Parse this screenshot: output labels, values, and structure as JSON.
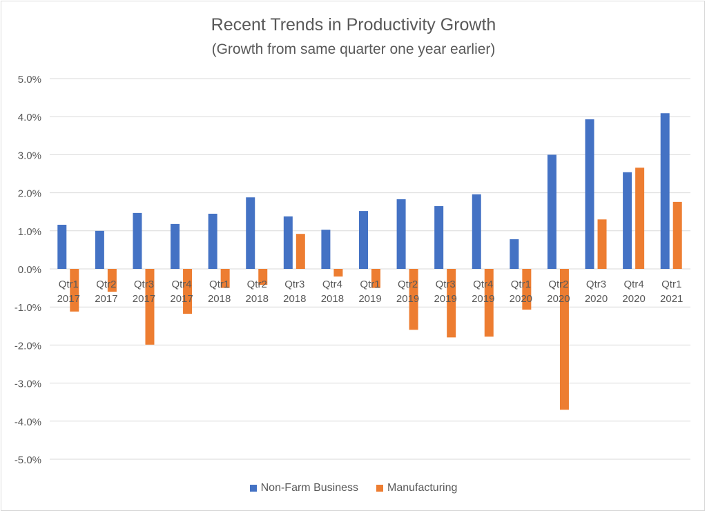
{
  "chart_data": {
    "type": "bar",
    "title": "Recent Trends in Productivity Growth",
    "subtitle": "(Growth from same quarter one year earlier)",
    "xlabel": "",
    "ylabel": "",
    "ylim": [
      -5.0,
      5.0
    ],
    "yticks": [
      "5.0%",
      "4.0%",
      "3.0%",
      "2.0%",
      "1.0%",
      "0.0%",
      "-1.0%",
      "-2.0%",
      "-3.0%",
      "-4.0%",
      "-5.0%"
    ],
    "grid": true,
    "legend": "bottom",
    "categories": [
      [
        "Qtr1",
        "2017"
      ],
      [
        "Qtr2",
        "2017"
      ],
      [
        "Qtr3",
        "2017"
      ],
      [
        "Qtr4",
        "2017"
      ],
      [
        "Qtr1",
        "2018"
      ],
      [
        "Qtr2",
        "2018"
      ],
      [
        "Qtr3",
        "2018"
      ],
      [
        "Qtr4",
        "2018"
      ],
      [
        "Qtr1",
        "2019"
      ],
      [
        "Qtr2",
        "2019"
      ],
      [
        "Qtr3",
        "2019"
      ],
      [
        "Qtr4",
        "2019"
      ],
      [
        "Qtr1",
        "2020"
      ],
      [
        "Qtr2",
        "2020"
      ],
      [
        "Qtr3",
        "2020"
      ],
      [
        "Qtr4",
        "2020"
      ],
      [
        "Qtr1",
        "2021"
      ]
    ],
    "series": [
      {
        "name": "Non-Farm Business",
        "color": "#4472c4",
        "values": [
          1.16,
          1.0,
          1.47,
          1.18,
          1.45,
          1.88,
          1.38,
          1.03,
          1.52,
          1.83,
          1.65,
          1.96,
          0.78,
          3.0,
          3.93,
          2.54,
          4.09
        ]
      },
      {
        "name": "Manufacturing",
        "color": "#ed7d31",
        "values": [
          -1.12,
          -0.6,
          -1.99,
          -1.18,
          -0.5,
          -0.42,
          0.92,
          -0.2,
          -0.5,
          -1.6,
          -1.8,
          -1.78,
          -1.07,
          -3.7,
          1.3,
          2.66,
          1.76
        ]
      }
    ]
  }
}
